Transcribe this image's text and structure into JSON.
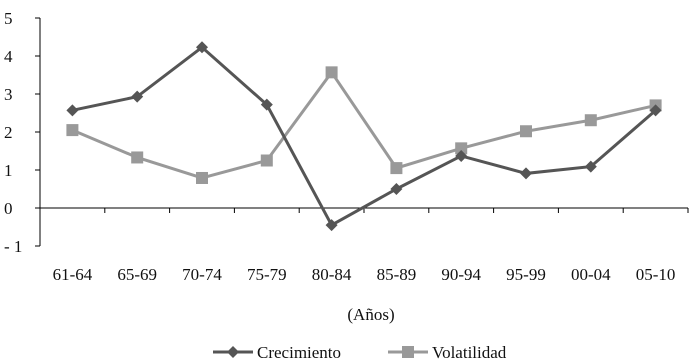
{
  "chart_data": {
    "type": "line",
    "title": "",
    "xlabel": "(Años)",
    "ylabel": "",
    "ylim": [
      -1,
      5
    ],
    "yticks": [
      "5",
      "4",
      "3",
      "2",
      "1",
      "0",
      "- 1"
    ],
    "categories": [
      "61-64",
      "65-69",
      "70-74",
      "75-79",
      "80-84",
      "85-89",
      "90-94",
      "95-99",
      "00-04",
      "05-10"
    ],
    "grid": false,
    "legend_position": "bottom",
    "series": [
      {
        "name": "Crecimiento",
        "color": "#555555",
        "marker": "diamond",
        "values": [
          2.57,
          2.93,
          4.23,
          2.72,
          -0.45,
          0.5,
          1.37,
          0.91,
          1.09,
          2.57
        ]
      },
      {
        "name": "Volatilidad",
        "color": "#999999",
        "marker": "square",
        "values": [
          2.05,
          1.33,
          0.79,
          1.25,
          3.57,
          1.05,
          1.57,
          2.02,
          2.31,
          2.7
        ]
      }
    ]
  }
}
